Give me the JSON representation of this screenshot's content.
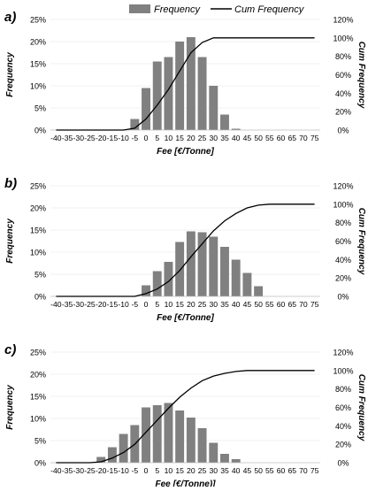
{
  "legend": {
    "frequency_label": "Frequency",
    "cum_label": "Cum Frequency",
    "bar_color": "#808080",
    "line_color": "#000000"
  },
  "chart_data": [
    {
      "type": "bar",
      "panel_label": "a)",
      "xlabel": "Fee [€/Tonne]",
      "ylabel": "Frequency",
      "y2label": "Cum Frequency",
      "categories": [
        "-40",
        "-35",
        "-30",
        "-25",
        "-20",
        "-15",
        "-10",
        "-5",
        "0",
        "5",
        "10",
        "15",
        "20",
        "25",
        "30",
        "35",
        "40",
        "45",
        "50",
        "55",
        "60",
        "65",
        "70",
        "75"
      ],
      "series": [
        {
          "name": "Frequency",
          "type": "bar",
          "axis": "left",
          "values": [
            0,
            0,
            0,
            0,
            0,
            0,
            0,
            2.5,
            9.5,
            15.5,
            16.5,
            20,
            21,
            16.5,
            10,
            3.5,
            0.3,
            0,
            0,
            0,
            0,
            0,
            0,
            0
          ]
        },
        {
          "name": "Cum Frequency",
          "type": "line",
          "axis": "right",
          "values": [
            0,
            0,
            0,
            0,
            0,
            0,
            0,
            2,
            12,
            27,
            44,
            64,
            84,
            95,
            100,
            100,
            100,
            100,
            100,
            100,
            100,
            100,
            100,
            100
          ]
        }
      ],
      "ylim": [
        0,
        25
      ],
      "y2lim": [
        0,
        120
      ],
      "yticks": [
        "0%",
        "5%",
        "10%",
        "15%",
        "20%",
        "25%"
      ],
      "y2ticks": [
        "0%",
        "20%",
        "40%",
        "60%",
        "80%",
        "100%",
        "120%"
      ]
    },
    {
      "type": "bar",
      "panel_label": "b)",
      "xlabel": "Fee [€/Tonne]",
      "ylabel": "Frequency",
      "y2label": "Cum Frequency",
      "categories": [
        "-40",
        "-35",
        "-30",
        "-25",
        "-20",
        "-15",
        "-10",
        "-5",
        "0",
        "5",
        "10",
        "15",
        "20",
        "25",
        "30",
        "35",
        "40",
        "45",
        "50",
        "55",
        "60",
        "65",
        "70",
        "75"
      ],
      "series": [
        {
          "name": "Frequency",
          "type": "bar",
          "axis": "left",
          "values": [
            0,
            0,
            0,
            0,
            0,
            0,
            0,
            0,
            2.5,
            5.7,
            7.8,
            12.3,
            14.7,
            14.5,
            13.5,
            11.2,
            8.3,
            5.3,
            2.3,
            0,
            0,
            0,
            0,
            0
          ]
        },
        {
          "name": "Cum Frequency",
          "type": "line",
          "axis": "right",
          "values": [
            0,
            0,
            0,
            0,
            0,
            0,
            0,
            0,
            3,
            8,
            16,
            28,
            43,
            57,
            71,
            82,
            90,
            96,
            99,
            100,
            100,
            100,
            100,
            100
          ]
        }
      ],
      "ylim": [
        0,
        25
      ],
      "y2lim": [
        0,
        120
      ],
      "yticks": [
        "0%",
        "5%",
        "10%",
        "15%",
        "20%",
        "25%"
      ],
      "y2ticks": [
        "0%",
        "20%",
        "40%",
        "60%",
        "80%",
        "100%",
        "120%"
      ]
    },
    {
      "type": "bar",
      "panel_label": "c)",
      "xlabel": "Fee [€/Tonne)]",
      "ylabel": "Frequency",
      "y2label": "Cum Frequency",
      "categories": [
        "-40",
        "-35",
        "-30",
        "-25",
        "-20",
        "-15",
        "-10",
        "-5",
        "0",
        "5",
        "10",
        "15",
        "20",
        "25",
        "30",
        "35",
        "40",
        "45",
        "50",
        "55",
        "60",
        "65",
        "70",
        "75"
      ],
      "series": [
        {
          "name": "Frequency",
          "type": "bar",
          "axis": "left",
          "values": [
            0,
            0,
            0,
            0,
            1.3,
            3.5,
            6.5,
            8.5,
            12.5,
            13,
            13.5,
            11.8,
            10.2,
            7.8,
            4.5,
            2,
            0.8,
            0,
            0,
            0,
            0,
            0,
            0,
            0
          ]
        },
        {
          "name": "Cum Frequency",
          "type": "line",
          "axis": "right",
          "values": [
            0,
            0,
            0,
            0,
            1,
            5,
            11,
            20,
            33,
            46,
            59,
            71,
            81,
            89,
            94,
            97,
            99,
            100,
            100,
            100,
            100,
            100,
            100,
            100
          ]
        }
      ],
      "ylim": [
        0,
        25
      ],
      "y2lim": [
        0,
        120
      ],
      "yticks": [
        "0%",
        "5%",
        "10%",
        "15%",
        "20%",
        "25%"
      ],
      "y2ticks": [
        "0%",
        "20%",
        "40%",
        "60%",
        "80%",
        "100%",
        "120%"
      ]
    }
  ]
}
